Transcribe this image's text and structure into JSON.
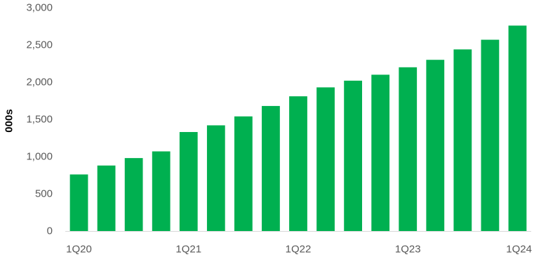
{
  "chart_data": {
    "type": "bar",
    "title": "",
    "xlabel": "",
    "ylabel": "000s",
    "ylim": [
      0,
      3000
    ],
    "yticks": [
      0,
      500,
      1000,
      1500,
      2000,
      2500,
      3000
    ],
    "ytick_labels": [
      "0",
      "500",
      "1,000",
      "1,500",
      "2,000",
      "2,500",
      "3,000"
    ],
    "grid": false,
    "categories": [
      "1Q20",
      "2Q20",
      "3Q20",
      "4Q20",
      "1Q21",
      "2Q21",
      "3Q21",
      "4Q21",
      "1Q22",
      "2Q22",
      "3Q22",
      "4Q22",
      "1Q23",
      "2Q23",
      "3Q23",
      "4Q23",
      "1Q24"
    ],
    "xtick_labels": [
      "1Q20",
      "",
      "",
      "",
      "1Q21",
      "",
      "",
      "",
      "1Q22",
      "",
      "",
      "",
      "1Q23",
      "",
      "",
      "",
      "1Q24"
    ],
    "values": [
      760,
      880,
      980,
      1070,
      1330,
      1420,
      1540,
      1680,
      1810,
      1930,
      2020,
      2100,
      2200,
      2300,
      2440,
      2570,
      2760
    ],
    "bar_color": "#00b050",
    "axis_color": "#d9d9d9"
  }
}
